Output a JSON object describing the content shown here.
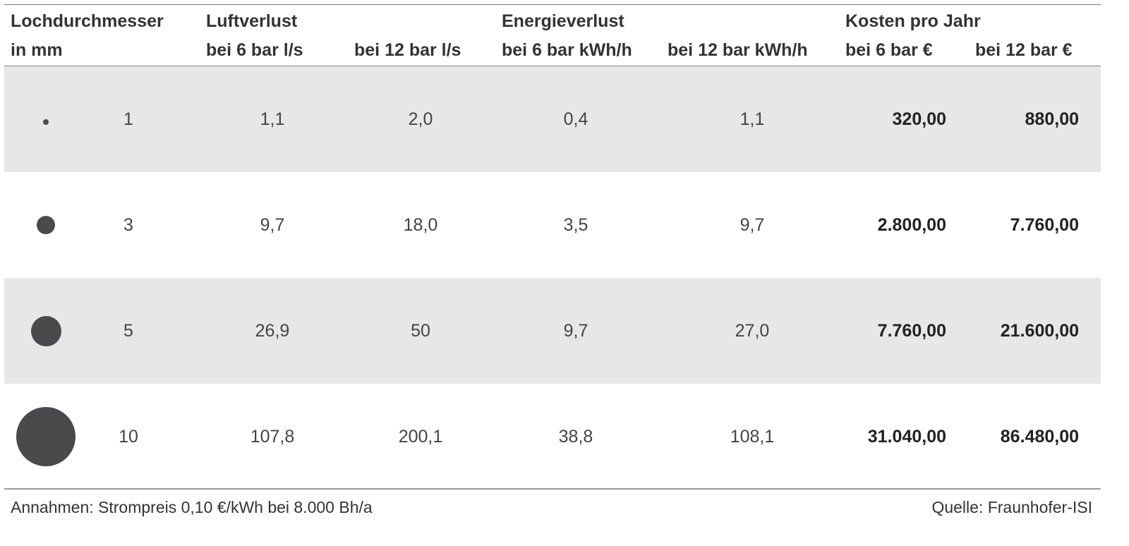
{
  "headers": {
    "col1_line1": "Lochdurchmesser",
    "col1_line2": "in mm",
    "luft": "Luftverlust",
    "luft_6": "bei 6 bar l/s",
    "luft_12": "bei 12 bar l/s",
    "energie": "Energieverlust",
    "energie_6": "bei 6 bar kWh/h",
    "energie_12": "bei 12 bar kWh/h",
    "kosten": "Kosten pro Jahr",
    "kosten_6": "bei 6 bar €",
    "kosten_12": "bei 12 bar €"
  },
  "rows": [
    {
      "diameter": "1",
      "luft6": "1,1",
      "luft12": "2,0",
      "energie6": "0,4",
      "energie12": "1,1",
      "kosten6": "320,00",
      "kosten12": "880,00"
    },
    {
      "diameter": "3",
      "luft6": "9,7",
      "luft12": "18,0",
      "energie6": "3,5",
      "energie12": "9,7",
      "kosten6": "2.800,00",
      "kosten12": "7.760,00"
    },
    {
      "diameter": "5",
      "luft6": "26,9",
      "luft12": "50",
      "energie6": "9,7",
      "energie12": "27,0",
      "kosten6": "7.760,00",
      "kosten12": "21.600,00"
    },
    {
      "diameter": "10",
      "luft6": "107,8",
      "luft12": "200,1",
      "energie6": "38,8",
      "energie12": "108,1",
      "kosten6": "31.040,00",
      "kosten12": "86.480,00"
    }
  ],
  "footer": {
    "left": "Annahmen: Strompreis 0,10 €/kWh bei 8.000 Bh/a",
    "right": "Quelle: Fraunhofer-ISI"
  },
  "colors": {
    "shade": "#e7e7e7",
    "dot": "#4a4a4d"
  }
}
